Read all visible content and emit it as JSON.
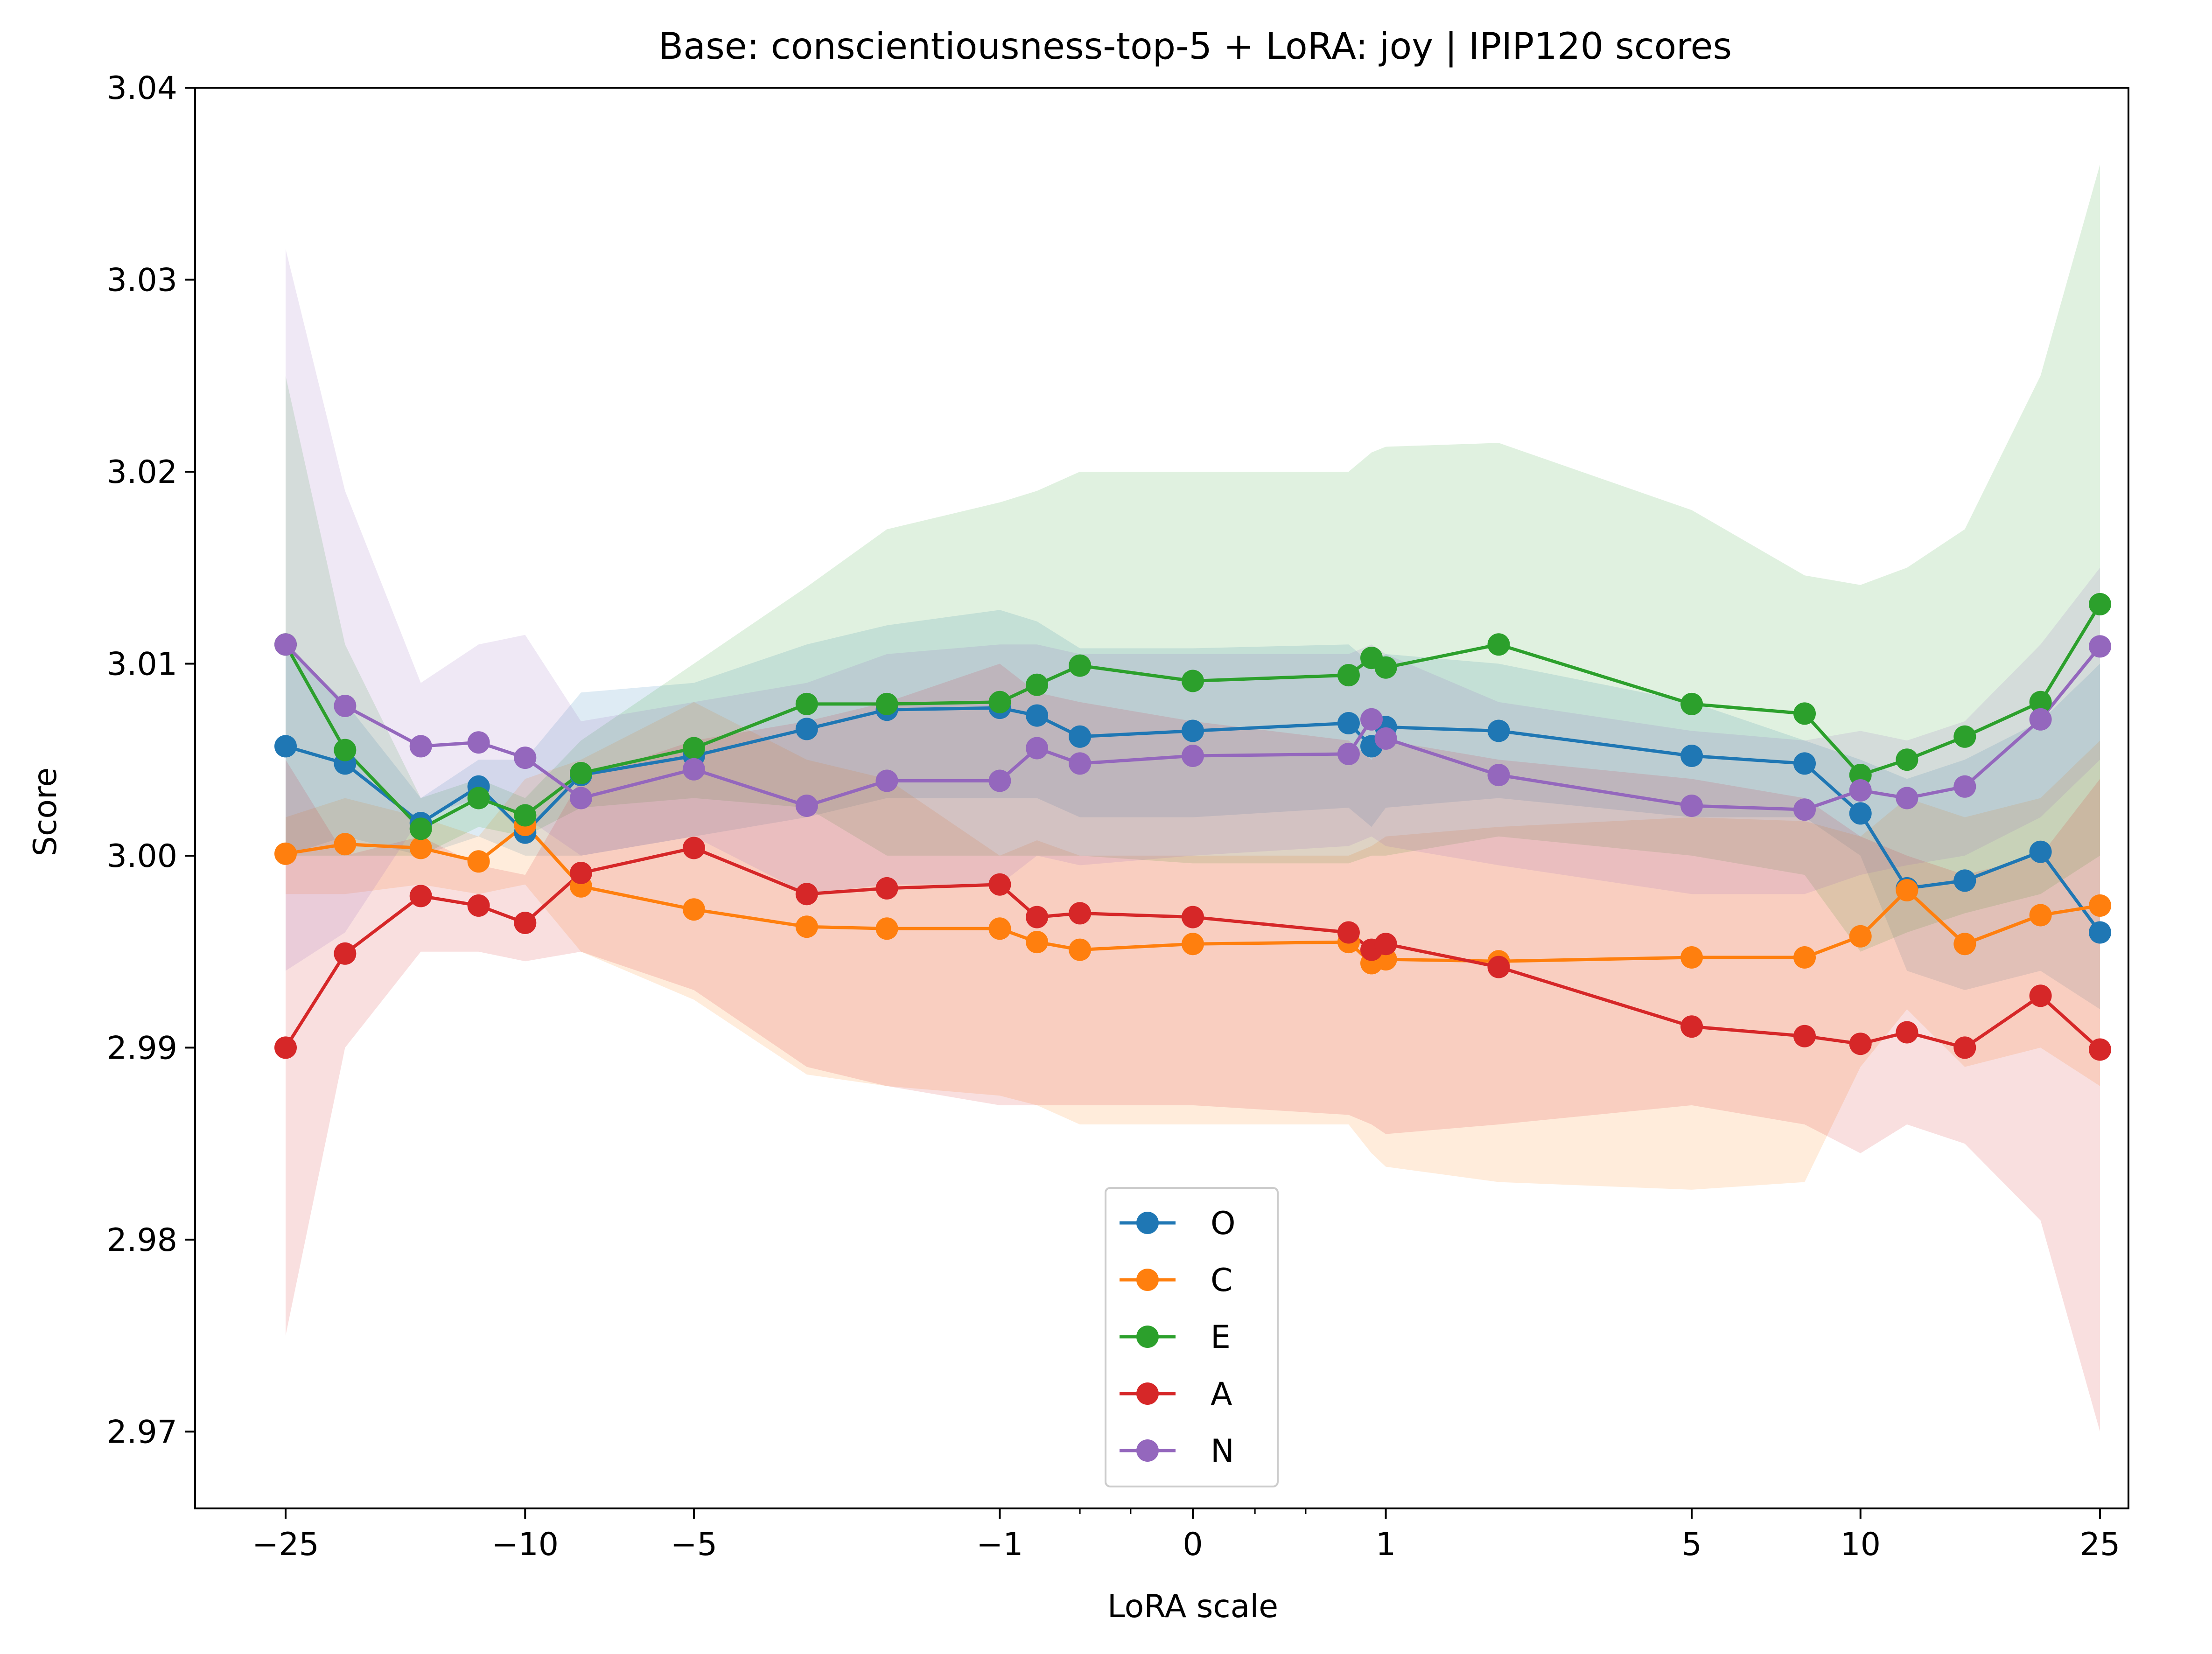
{
  "chart_data": {
    "type": "line",
    "title": "Base: conscientiousness-top-5 + LoRA: joy | IPIP120 scores",
    "xlabel": "LoRA scale",
    "ylabel": "Score",
    "x_scale": "symlog",
    "x_ticks": [
      {
        "value": -25,
        "label": "−25"
      },
      {
        "value": -10,
        "label": "−10"
      },
      {
        "value": -5,
        "label": "−5"
      },
      {
        "value": -1,
        "label": "−1"
      },
      {
        "value": 0,
        "label": "0"
      },
      {
        "value": 1,
        "label": "1"
      },
      {
        "value": 5,
        "label": "5"
      },
      {
        "value": 10,
        "label": "10"
      },
      {
        "value": 25,
        "label": "25"
      }
    ],
    "x_minor_ticks": [
      -0.5,
      -0.25,
      0.25,
      0.5
    ],
    "y_ticks": [
      {
        "value": 2.97,
        "label": "2.97"
      },
      {
        "value": 2.98,
        "label": "2.98"
      },
      {
        "value": 2.99,
        "label": "2.99"
      },
      {
        "value": 3.0,
        "label": "3.00"
      },
      {
        "value": 3.01,
        "label": "3.01"
      },
      {
        "value": 3.02,
        "label": "3.02"
      },
      {
        "value": 3.03,
        "label": "3.03"
      },
      {
        "value": 3.04,
        "label": "3.04"
      }
    ],
    "ylim": [
      2.966,
      3.04
    ],
    "grid": false,
    "legend_position": "bottom-center",
    "x": [
      -25,
      -20,
      -15,
      -12,
      -10,
      -8,
      -5,
      -3,
      -2,
      -1,
      -0.75,
      -0.5,
      0,
      0.75,
      0.9,
      1,
      2,
      5,
      8,
      10,
      12,
      15,
      20,
      25
    ],
    "series": [
      {
        "name": "O",
        "color": "#1f77b4",
        "values": [
          3.0057,
          3.0048,
          3.0017,
          3.0036,
          3.0012,
          3.0042,
          3.0052,
          3.0066,
          3.0076,
          3.0077,
          3.0073,
          3.0062,
          3.0065,
          3.0069,
          3.0057,
          3.0067,
          3.0065,
          3.0052,
          3.0048,
          3.0022,
          2.9983,
          2.9987,
          3.0002,
          2.996
        ],
        "upper": [
          3.011,
          3.008,
          3.003,
          3.005,
          3.005,
          3.0085,
          3.009,
          3.011,
          3.012,
          3.0128,
          3.0122,
          3.0108,
          3.0108,
          3.011,
          3.01,
          3.0105,
          3.01,
          3.008,
          3.006,
          3.005,
          3.004,
          3.005,
          3.007,
          3.01
        ],
        "lower": [
          3.0,
          3.001,
          3.0,
          3.001,
          3.0,
          3.0,
          3.001,
          3.002,
          3.003,
          3.003,
          3.003,
          3.002,
          3.002,
          3.0025,
          3.0015,
          3.0025,
          3.003,
          3.002,
          3.002,
          3.0,
          2.994,
          2.993,
          2.994,
          2.992
        ]
      },
      {
        "name": "C",
        "color": "#ff7f0e",
        "values": [
          3.0001,
          3.0006,
          3.0004,
          2.9997,
          3.0016,
          2.9984,
          2.9972,
          2.9963,
          2.9962,
          2.9962,
          2.9955,
          2.9951,
          2.9954,
          2.9955,
          2.9944,
          2.9946,
          2.9945,
          2.9947,
          2.9947,
          2.9958,
          2.9982,
          2.9954,
          2.9969,
          2.9974
        ],
        "upper": [
          3.002,
          3.003,
          3.002,
          3.001,
          3.004,
          3.005,
          3.008,
          3.005,
          3.004,
          3.0,
          3.0008,
          3.0,
          3.0,
          3.0,
          3.0005,
          3.001,
          3.0015,
          3.002,
          3.0018,
          3.001,
          3.003,
          3.002,
          3.003,
          3.006
        ],
        "lower": [
          2.998,
          2.998,
          2.9985,
          2.998,
          2.9985,
          2.995,
          2.9925,
          2.9886,
          2.988,
          2.9875,
          2.987,
          2.986,
          2.986,
          2.986,
          2.9845,
          2.9838,
          2.983,
          2.9826,
          2.983,
          2.989,
          2.992,
          2.989,
          2.99,
          2.988
        ]
      },
      {
        "name": "E",
        "color": "#2ca02c",
        "values": [
          3.011,
          3.0055,
          3.0014,
          3.003,
          3.0021,
          3.0043,
          3.0056,
          3.0079,
          3.0079,
          3.008,
          3.0089,
          3.0099,
          3.0091,
          3.0094,
          3.0103,
          3.0098,
          3.011,
          3.0079,
          3.0074,
          3.0042,
          3.005,
          3.0062,
          3.008,
          3.0131
        ],
        "upper": [
          3.025,
          3.011,
          3.003,
          3.004,
          3.003,
          3.006,
          3.01,
          3.014,
          3.017,
          3.0184,
          3.019,
          3.02,
          3.02,
          3.02,
          3.021,
          3.0213,
          3.0215,
          3.018,
          3.0146,
          3.0141,
          3.015,
          3.017,
          3.025,
          3.036
        ],
        "lower": [
          3.0,
          3.0,
          3.0,
          3.0015,
          3.001,
          3.0025,
          3.003,
          3.0025,
          3.0,
          3.0,
          3.0,
          3.0,
          2.9996,
          2.9996,
          3.0,
          3.0,
          3.001,
          3.0,
          2.999,
          2.995,
          2.996,
          2.997,
          2.998,
          3.0
        ]
      },
      {
        "name": "A",
        "color": "#d62728",
        "values": [
          2.99,
          2.9949,
          2.9979,
          2.9974,
          2.9965,
          2.9991,
          3.0004,
          2.998,
          2.9983,
          2.9985,
          2.9968,
          2.997,
          2.9968,
          2.996,
          2.9951,
          2.9954,
          2.9942,
          2.9911,
          2.9906,
          2.9902,
          2.9908,
          2.99,
          2.9927,
          2.9899
        ],
        "upper": [
          3.005,
          3.0,
          3.001,
          2.9995,
          2.999,
          3.004,
          3.006,
          3.007,
          3.008,
          3.01,
          3.0085,
          3.008,
          3.007,
          3.006,
          3.005,
          3.006,
          3.005,
          3.004,
          3.003,
          3.001,
          3.0,
          2.999,
          3.0,
          3.004
        ],
        "lower": [
          2.975,
          2.99,
          2.995,
          2.995,
          2.9945,
          2.995,
          2.993,
          2.989,
          2.988,
          2.987,
          2.987,
          2.987,
          2.987,
          2.9865,
          2.986,
          2.9855,
          2.986,
          2.987,
          2.986,
          2.9845,
          2.986,
          2.985,
          2.981,
          2.97
        ]
      },
      {
        "name": "N",
        "color": "#9467bd",
        "values": [
          3.011,
          3.0078,
          3.0057,
          3.0059,
          3.0051,
          3.003,
          3.0045,
          3.0026,
          3.0039,
          3.0039,
          3.0056,
          3.0048,
          3.0052,
          3.0053,
          3.0071,
          3.0061,
          3.0042,
          3.0026,
          3.0024,
          3.0034,
          3.003,
          3.0036,
          3.0071,
          3.0109
        ],
        "upper": [
          3.0316,
          3.019,
          3.009,
          3.011,
          3.0115,
          3.007,
          3.008,
          3.009,
          3.0105,
          3.011,
          3.011,
          3.0105,
          3.0105,
          3.0105,
          3.011,
          3.0105,
          3.008,
          3.0065,
          3.006,
          3.0065,
          3.006,
          3.007,
          3.011,
          3.015
        ],
        "lower": [
          2.994,
          2.996,
          3.002,
          3.003,
          3.002,
          3.0,
          3.001,
          2.998,
          2.9985,
          2.9985,
          3.0,
          2.9995,
          3.0,
          3.0005,
          3.001,
          3.0005,
          2.9995,
          2.998,
          2.998,
          2.999,
          2.9995,
          3.0,
          3.002,
          3.005
        ]
      }
    ]
  }
}
